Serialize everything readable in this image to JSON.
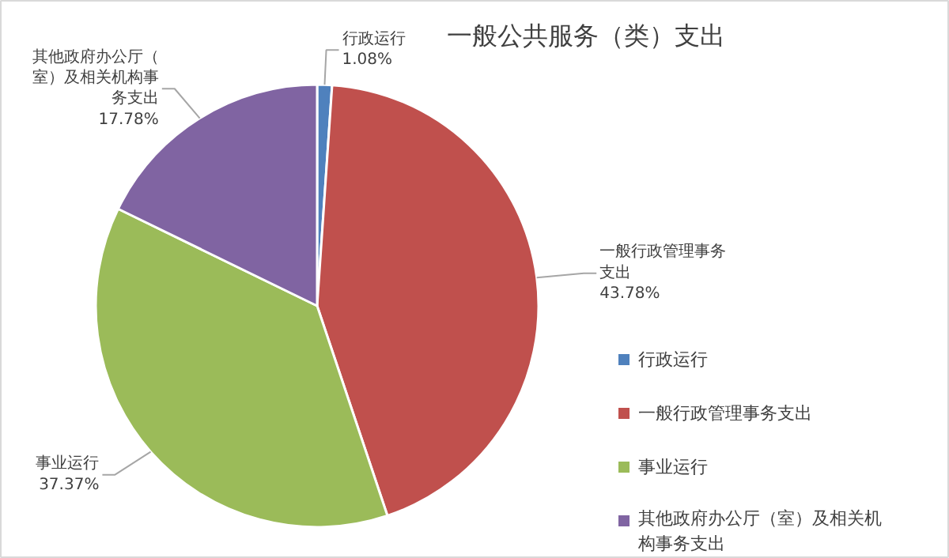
{
  "chart_data": {
    "type": "pie",
    "title": "一般公共服务（类）支出",
    "categories": [
      "行政运行",
      "一般行政管理事务支出",
      "事业运行",
      "其他政府办公厅（室）及相关机构事务支出"
    ],
    "values": [
      1.08,
      43.78,
      37.37,
      17.78
    ],
    "colors": [
      "#4f81bd",
      "#c0504d",
      "#9bbb59",
      "#8064a2"
    ],
    "value_labels": [
      "1.08%",
      "43.78%",
      "37.37%",
      "17.78%"
    ],
    "legend": "right"
  }
}
